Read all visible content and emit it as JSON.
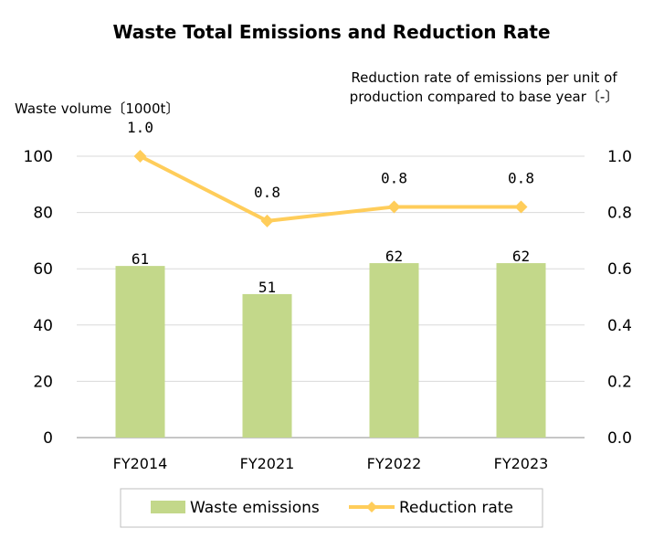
{
  "chart_data": {
    "type": "bar",
    "title": "Waste Total Emissions and Reduction Rate",
    "ylabel_left": "Waste volume〔1000t〕",
    "ylabel_right": [
      "Reduction rate of emissions per unit of",
      "production compared to base year〔-〕"
    ],
    "categories": [
      "FY2014",
      "FY2021",
      "FY2022",
      "FY2023"
    ],
    "ylim_left": [
      0,
      100
    ],
    "yticks_left": [
      "0",
      "20",
      "40",
      "60",
      "80",
      "100"
    ],
    "ylim_right": [
      0,
      1.0
    ],
    "yticks_right": [
      "0.0",
      "0.2",
      "0.4",
      "0.6",
      "0.8",
      "1.0"
    ],
    "grid": true,
    "legend_position": "bottom",
    "series": [
      {
        "name": "Waste emissions",
        "type": "bar",
        "axis": "left",
        "color": "#c3d88a",
        "values": [
          61,
          51,
          62,
          62
        ],
        "labels": [
          "61",
          "51",
          "62",
          "62"
        ]
      },
      {
        "name": "Reduction rate",
        "type": "line",
        "axis": "right",
        "color": "#ffcd5a",
        "values": [
          1.0,
          0.77,
          0.82,
          0.82
        ],
        "labels": [
          "1.0",
          "0.8",
          "0.8",
          "0.8"
        ]
      }
    ]
  }
}
